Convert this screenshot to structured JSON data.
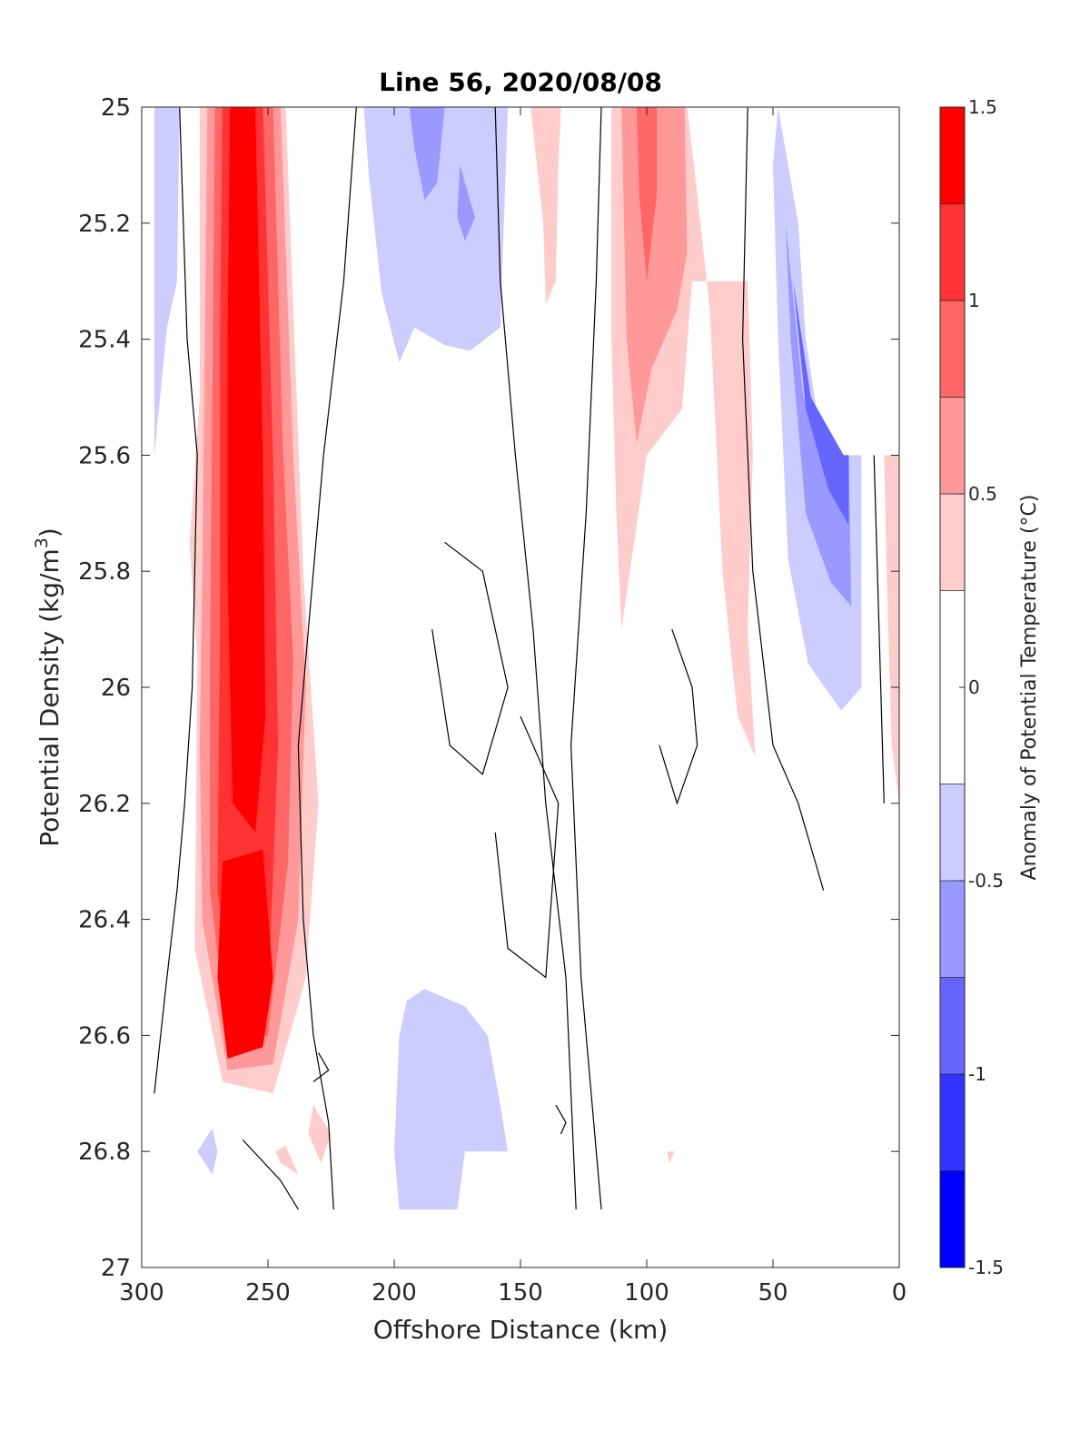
{
  "chart_data": {
    "type": "contour",
    "title": "Line 56, 2020/08/08",
    "xlabel": "Offshore Distance (km)",
    "ylabel_main": "Potential Density (kg/m",
    "ylabel_sup": "3",
    "ylabel_close": ")",
    "xlim": [
      300,
      0
    ],
    "ylim": [
      25,
      27
    ],
    "x_ticks": [
      300,
      250,
      200,
      150,
      100,
      50,
      0
    ],
    "x_tick_labels": [
      "300",
      "250",
      "200",
      "150",
      "100",
      "50",
      "0"
    ],
    "y_ticks": [
      25,
      25.2,
      25.4,
      25.6,
      25.8,
      26,
      26.2,
      26.4,
      26.6,
      26.8,
      27
    ],
    "y_tick_labels": [
      "25",
      "25.2",
      "25.4",
      "25.6",
      "25.8",
      "26",
      "26.2",
      "26.4",
      "26.6",
      "26.8",
      "27"
    ],
    "colorbar": {
      "label": "Anomaly of Potential Temperature (°C)",
      "range": [
        -1.5,
        1.5
      ],
      "tick_values": [
        -1.5,
        -1,
        -0.5,
        0,
        0.5,
        1,
        1.5
      ],
      "tick_labels": [
        "-1.5",
        "-1",
        "-0.5",
        "0",
        "0.5",
        "1",
        "1.5"
      ],
      "levels": [
        -1.5,
        -1.25,
        -1,
        -0.75,
        -0.5,
        -0.25,
        0.25,
        0.5,
        0.75,
        1,
        1.25,
        1.5
      ],
      "colors": [
        "#0000ff",
        "#3333ff",
        "#6666ff",
        "#9999ff",
        "#ccccff",
        "#ffffff",
        "#ffcccc",
        "#ff9999",
        "#ff6666",
        "#ff3333",
        "#ff0000"
      ]
    },
    "regions": [
      {
        "level": 0.25,
        "color": "#ffcccc",
        "points": [
          [
            277,
            25
          ],
          [
            243,
            25
          ],
          [
            236,
            25.8
          ],
          [
            230,
            26.2
          ],
          [
            235,
            26.5
          ],
          [
            248,
            26.7
          ],
          [
            268,
            26.68
          ],
          [
            279,
            26.45
          ],
          [
            278,
            25.95
          ],
          [
            281,
            25.75
          ],
          [
            277,
            25.5
          ]
        ]
      },
      {
        "level": 0.5,
        "color": "#ff9999",
        "points": [
          [
            274,
            25
          ],
          [
            245,
            25
          ],
          [
            240,
            25.6
          ],
          [
            235,
            26
          ],
          [
            238,
            26.4
          ],
          [
            248,
            26.65
          ],
          [
            266,
            26.66
          ],
          [
            276,
            26.4
          ],
          [
            277,
            26.1
          ],
          [
            276,
            25.8
          ],
          [
            275,
            25.4
          ]
        ]
      },
      {
        "level": 0.75,
        "color": "#ff6666",
        "points": [
          [
            271,
            25
          ],
          [
            248,
            25
          ],
          [
            244,
            25.6
          ],
          [
            240,
            25.95
          ],
          [
            242,
            26.3
          ],
          [
            250,
            26.6
          ],
          [
            265,
            26.63
          ],
          [
            273,
            26.35
          ],
          [
            273,
            25.95
          ],
          [
            272,
            25.5
          ]
        ]
      },
      {
        "level": 1.0,
        "color": "#ff3333",
        "points": [
          [
            268,
            25
          ],
          [
            252,
            25
          ],
          [
            248,
            25.6
          ],
          [
            246,
            26.1
          ],
          [
            250,
            26.55
          ],
          [
            262,
            26.6
          ],
          [
            270,
            26.35
          ],
          [
            269,
            25.9
          ],
          [
            269,
            25.4
          ]
        ]
      },
      {
        "level": 1.25,
        "color": "#ff0000",
        "points": [
          [
            265,
            25
          ],
          [
            255,
            25
          ],
          [
            252,
            25.6
          ],
          [
            251,
            26.05
          ],
          [
            255,
            26.25
          ],
          [
            264,
            26.2
          ],
          [
            266,
            25.8
          ],
          [
            266,
            25.4
          ]
        ]
      },
      {
        "level": 1.25,
        "color": "#ff0000",
        "points": [
          [
            268,
            26.3
          ],
          [
            252,
            26.28
          ],
          [
            248,
            26.5
          ],
          [
            252,
            26.62
          ],
          [
            266,
            26.64
          ],
          [
            270,
            26.5
          ]
        ]
      },
      {
        "level": -0.25,
        "color": "#ccccff",
        "points": [
          [
            295,
            25
          ],
          [
            285,
            25
          ],
          [
            286,
            25.3
          ],
          [
            290,
            25.38
          ],
          [
            295,
            25.6
          ]
        ]
      },
      {
        "level": -0.25,
        "color": "#ccccff",
        "points": [
          [
            212,
            25
          ],
          [
            155,
            25
          ],
          [
            158,
            25.38
          ],
          [
            170,
            25.42
          ],
          [
            180,
            25.41
          ],
          [
            192,
            25.38
          ],
          [
            198,
            25.44
          ],
          [
            205,
            25.32
          ],
          [
            210,
            25.12
          ]
        ]
      },
      {
        "level": -0.5,
        "color": "#9999ff",
        "points": [
          [
            194,
            25
          ],
          [
            180,
            25
          ],
          [
            183,
            25.13
          ],
          [
            188,
            25.16
          ],
          [
            192,
            25.07
          ]
        ]
      },
      {
        "level": -0.5,
        "color": "#9999ff",
        "points": [
          [
            174,
            25.1
          ],
          [
            168,
            25.19
          ],
          [
            172,
            25.23
          ],
          [
            175,
            25.19
          ]
        ]
      },
      {
        "level": -0.25,
        "color": "#ccccff",
        "points": [
          [
            48,
            25
          ],
          [
            40,
            25.2
          ],
          [
            37,
            25.4
          ],
          [
            30,
            25.6
          ],
          [
            20,
            25.6
          ],
          [
            15,
            25.6
          ],
          [
            15,
            26
          ],
          [
            23,
            26.04
          ],
          [
            36,
            25.96
          ],
          [
            44,
            25.78
          ],
          [
            48,
            25.4
          ],
          [
            50,
            25.1
          ]
        ]
      },
      {
        "level": -0.5,
        "color": "#9999ff",
        "points": [
          [
            45,
            25.2
          ],
          [
            38,
            25.5
          ],
          [
            25,
            25.6
          ],
          [
            20,
            25.6
          ],
          [
            19,
            25.86
          ],
          [
            27,
            25.82
          ],
          [
            37,
            25.7
          ],
          [
            43,
            25.4
          ]
        ]
      },
      {
        "level": -0.75,
        "color": "#6666ff",
        "points": [
          [
            42,
            25.3
          ],
          [
            35,
            25.5
          ],
          [
            22,
            25.6
          ],
          [
            20,
            25.6
          ],
          [
            20,
            25.72
          ],
          [
            28,
            25.66
          ],
          [
            37,
            25.52
          ]
        ]
      },
      {
        "level": -0.25,
        "color": "#ccccff",
        "points": [
          [
            200,
            26.8
          ],
          [
            198,
            26.9
          ],
          [
            175,
            26.9
          ],
          [
            172,
            26.8
          ],
          [
            155,
            26.8
          ],
          [
            158,
            26.72
          ],
          [
            163,
            26.6
          ],
          [
            172,
            26.55
          ],
          [
            188,
            26.52
          ],
          [
            195,
            26.54
          ],
          [
            198,
            26.6
          ]
        ]
      },
      {
        "level": -0.25,
        "color": "#ccccff",
        "points": [
          [
            278,
            26.8
          ],
          [
            272,
            26.76
          ],
          [
            270,
            26.8
          ],
          [
            272,
            26.84
          ]
        ]
      },
      {
        "level": 0.25,
        "color": "#ffcccc",
        "points": [
          [
            146,
            25
          ],
          [
            134,
            25
          ],
          [
            135,
            25.1
          ],
          [
            136,
            25.3
          ],
          [
            140,
            25.34
          ],
          [
            141,
            25.2
          ]
        ]
      },
      {
        "level": 0.25,
        "color": "#ffcccc",
        "points": [
          [
            114,
            25
          ],
          [
            84,
            25
          ],
          [
            80,
            25.15
          ],
          [
            75,
            25.35
          ],
          [
            70,
            25.8
          ],
          [
            64,
            26.05
          ],
          [
            57,
            26.12
          ],
          [
            60,
            25.9
          ],
          [
            58,
            25.6
          ],
          [
            60,
            25.3
          ],
          [
            82,
            25.3
          ],
          [
            86,
            25.52
          ],
          [
            100,
            25.6
          ],
          [
            110,
            25.9
          ],
          [
            112,
            25.7
          ],
          [
            114,
            25.4
          ]
        ]
      },
      {
        "level": 0.5,
        "color": "#ff9999",
        "points": [
          [
            110,
            25
          ],
          [
            85,
            25
          ],
          [
            84,
            25.25
          ],
          [
            88,
            25.35
          ],
          [
            98,
            25.45
          ],
          [
            104,
            25.58
          ],
          [
            108,
            25.4
          ]
        ]
      },
      {
        "level": 0.75,
        "color": "#ff6666",
        "points": [
          [
            104,
            25
          ],
          [
            96,
            25
          ],
          [
            96,
            25.15
          ],
          [
            100,
            25.3
          ],
          [
            103,
            25.15
          ]
        ]
      },
      {
        "level": 0.25,
        "color": "#ffcccc",
        "points": [
          [
            6,
            25.6
          ],
          [
            1,
            25.6
          ],
          [
            0,
            25.6
          ],
          [
            0,
            26.2
          ],
          [
            3,
            26.1
          ],
          [
            5,
            25.8
          ]
        ]
      },
      {
        "level": 0.25,
        "color": "#ffcccc",
        "points": [
          [
            232,
            26.72
          ],
          [
            225,
            26.77
          ],
          [
            229,
            26.82
          ],
          [
            234,
            26.77
          ]
        ]
      },
      {
        "level": 0.25,
        "color": "#ffcccc",
        "points": [
          [
            243,
            26.79
          ],
          [
            238,
            26.84
          ],
          [
            245,
            26.82
          ],
          [
            247,
            26.8
          ]
        ]
      },
      {
        "level": 0.25,
        "color": "#ffcccc",
        "points": [
          [
            92,
            26.8
          ],
          [
            89,
            26.8
          ],
          [
            91,
            26.82
          ]
        ]
      }
    ],
    "zero_contours": [
      [
        [
          285,
          25
        ],
        [
          282,
          25.4
        ],
        [
          278,
          25.6
        ],
        [
          280,
          26.0
        ],
        [
          283,
          26.2
        ],
        [
          286,
          26.35
        ],
        [
          290,
          26.5
        ],
        [
          295,
          26.7
        ]
      ],
      [
        [
          215,
          25
        ],
        [
          220,
          25.3
        ],
        [
          228,
          25.6
        ],
        [
          234,
          25.9
        ],
        [
          238,
          26.1
        ],
        [
          236,
          26.4
        ],
        [
          232,
          26.6
        ],
        [
          226,
          26.75
        ],
        [
          224,
          26.9
        ]
      ],
      [
        [
          160,
          25
        ],
        [
          158,
          25.3
        ],
        [
          152,
          25.6
        ],
        [
          145,
          25.9
        ],
        [
          140,
          26.2
        ],
        [
          132,
          26.5
        ],
        [
          128,
          26.9
        ]
      ],
      [
        [
          118,
          25
        ],
        [
          120,
          25.3
        ],
        [
          124,
          25.7
        ],
        [
          130,
          26.1
        ],
        [
          126,
          26.5
        ],
        [
          118,
          26.9
        ]
      ],
      [
        [
          60,
          25
        ],
        [
          62,
          25.4
        ],
        [
          58,
          25.8
        ],
        [
          50,
          26.1
        ],
        [
          40,
          26.2
        ],
        [
          30,
          26.35
        ]
      ],
      [
        [
          10,
          25.6
        ],
        [
          8,
          25.9
        ],
        [
          6,
          26.2
        ]
      ],
      [
        [
          180,
          25.75
        ],
        [
          165,
          25.8
        ],
        [
          155,
          26.0
        ],
        [
          165,
          26.15
        ],
        [
          178,
          26.1
        ],
        [
          185,
          25.9
        ]
      ],
      [
        [
          150,
          26.05
        ],
        [
          135,
          26.2
        ],
        [
          140,
          26.5
        ],
        [
          155,
          26.45
        ],
        [
          160,
          26.25
        ]
      ],
      [
        [
          90,
          25.9
        ],
        [
          82,
          26.0
        ],
        [
          80,
          26.1
        ],
        [
          88,
          26.2
        ],
        [
          95,
          26.1
        ]
      ],
      [
        [
          230,
          26.63
        ],
        [
          226,
          26.66
        ],
        [
          232,
          26.68
        ]
      ],
      [
        [
          136,
          26.72
        ],
        [
          132,
          26.75
        ],
        [
          134,
          26.77
        ]
      ],
      [
        [
          260,
          26.78
        ],
        [
          245,
          26.85
        ],
        [
          238,
          26.9
        ]
      ]
    ]
  }
}
